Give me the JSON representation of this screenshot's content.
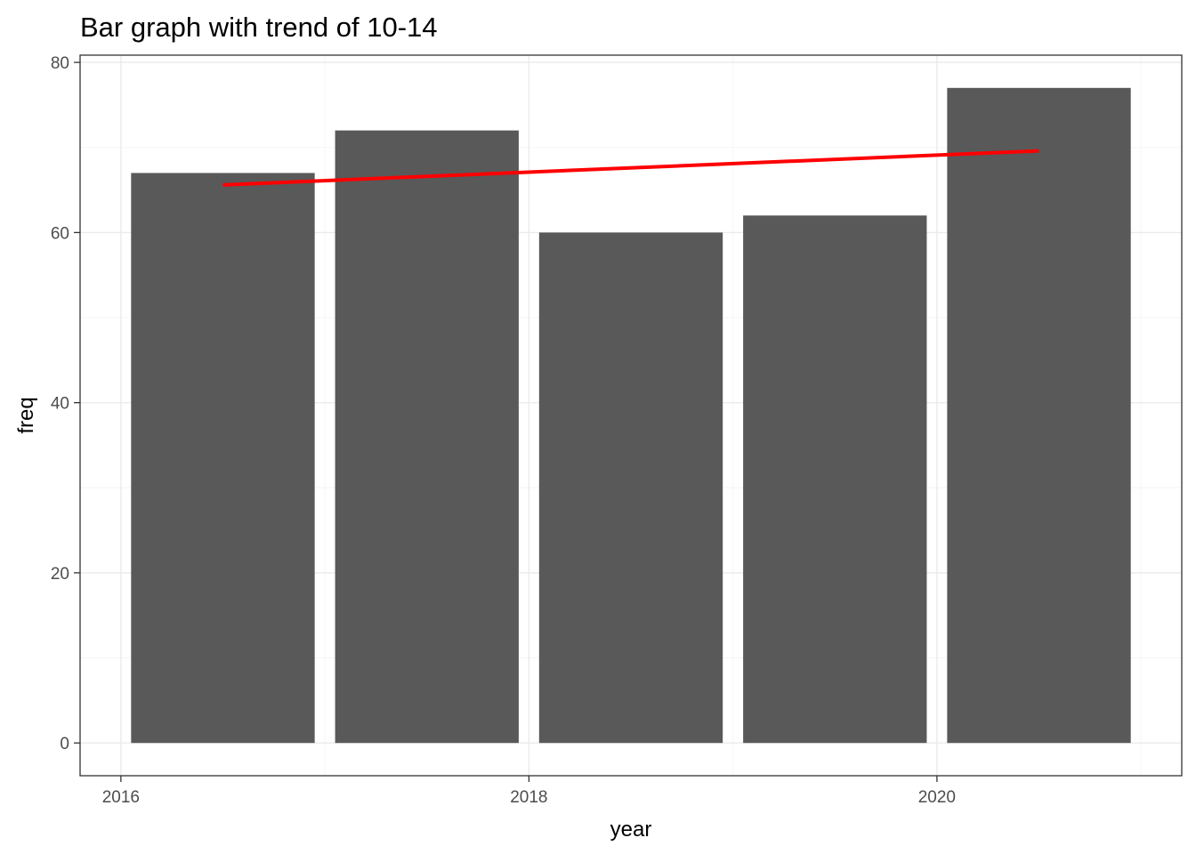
{
  "chart_data": {
    "type": "bar",
    "title": "Bar graph with trend of 10-14",
    "xlabel": "year",
    "ylabel": "freq",
    "categories": [
      2016.5,
      2017.5,
      2018.5,
      2019.5,
      2020.5
    ],
    "values": [
      67,
      72,
      60,
      62,
      77
    ],
    "trend": {
      "x": [
        2016.5,
        2020.5
      ],
      "y": [
        65.6,
        69.6
      ]
    },
    "xlim": [
      2015.8,
      2021.2
    ],
    "ylim": [
      -3.85,
      80.85
    ],
    "x_ticks": [
      2016,
      2018,
      2020
    ],
    "x_minor_ticks": [
      2017,
      2019,
      2021
    ],
    "y_ticks": [
      0,
      20,
      40,
      60,
      80
    ],
    "y_minor_ticks": [
      10,
      30,
      50,
      70
    ],
    "bar_width": 0.9,
    "grid": true,
    "legend": "none"
  },
  "colors": {
    "bar": "#595959",
    "trend": "#ff0000",
    "grid_major": "#ebebeb",
    "grid_minor": "#f5f5f5",
    "panel_border": "#333333",
    "tick_text": "#4d4d4d"
  }
}
